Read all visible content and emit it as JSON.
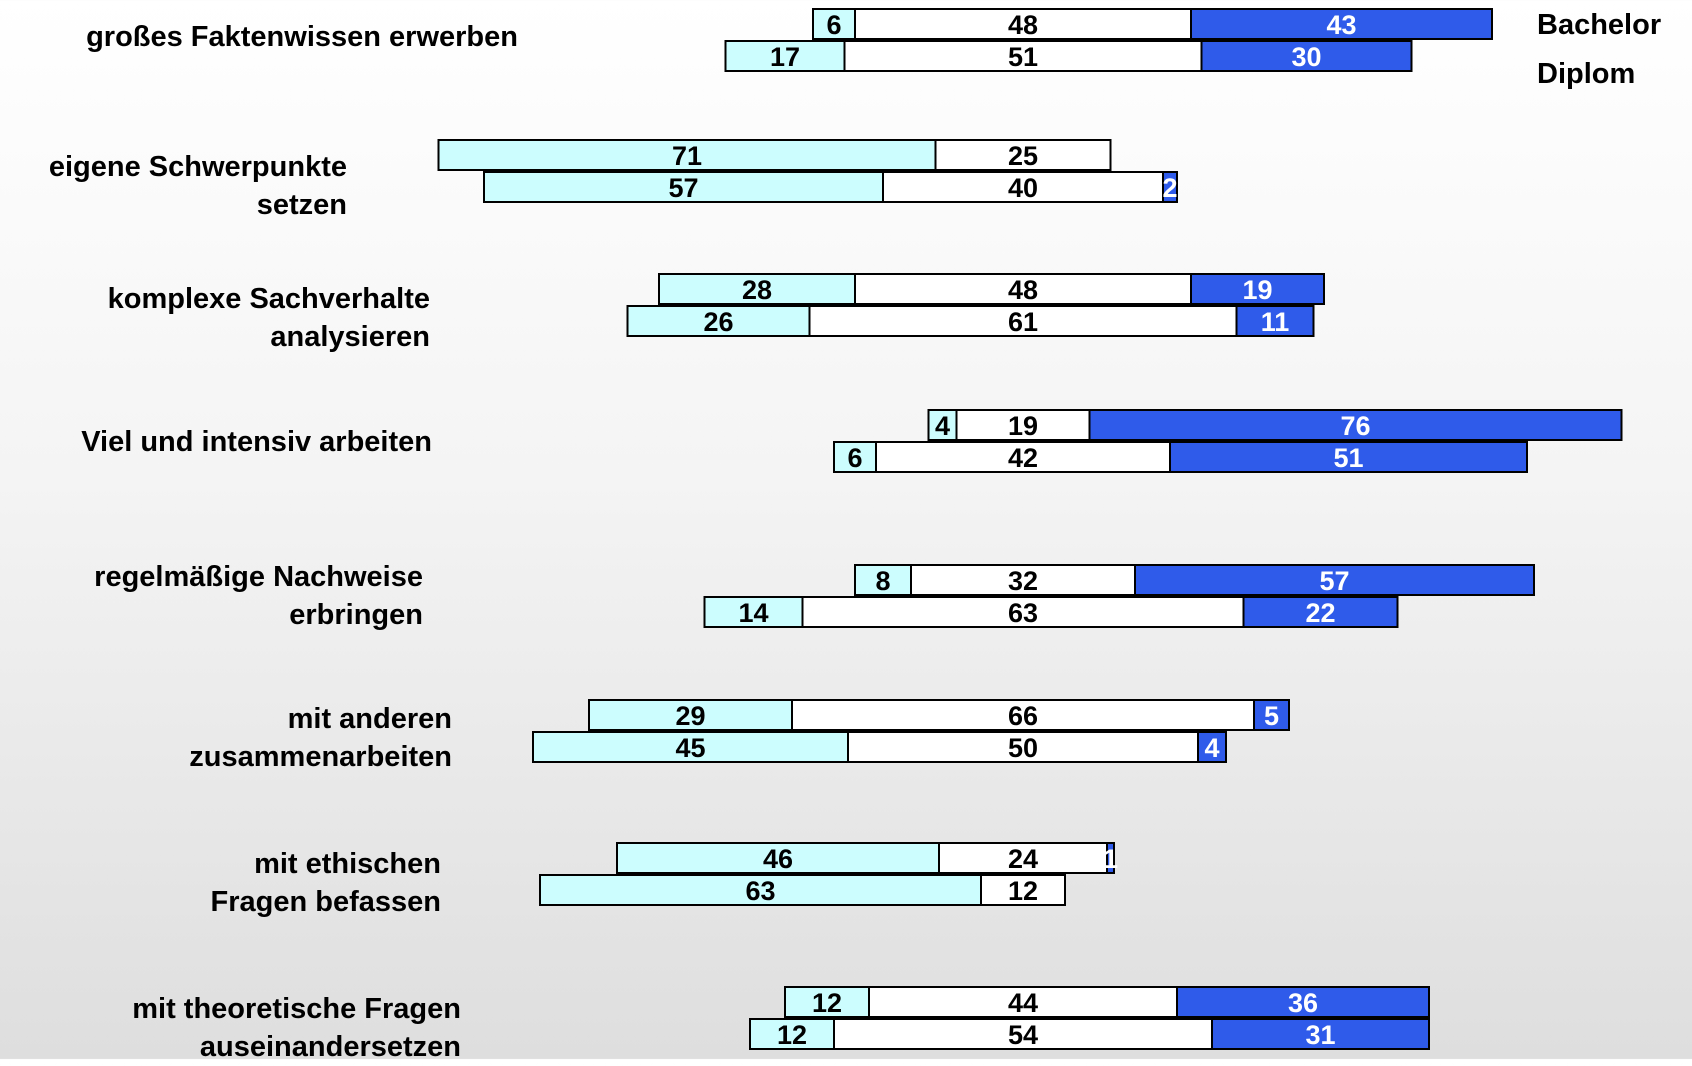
{
  "colors": {
    "low": "#ccfdfe",
    "mid": "#ffffff",
    "high": "#2f5bea",
    "stroke": "#000000",
    "label_dark": "#000000",
    "label_light": "#ffffff"
  },
  "legend": {
    "bachelor": "Bachelor",
    "diplom": "Diplom"
  },
  "chart_data": {
    "type": "bar",
    "subtype": "stacked-horizontal-diverging",
    "title": "",
    "xlabel": "",
    "ylabel": "",
    "grid": false,
    "legend_position": "top-right",
    "segments": [
      "low",
      "mid",
      "high"
    ],
    "series": [
      {
        "name": "Bachelor"
      },
      {
        "name": "Diplom"
      }
    ],
    "categories": [
      {
        "label_lines": [
          "großes Faktenwissen erwerben"
        ],
        "bachelor": [
          6,
          48,
          43
        ],
        "diplom": [
          17,
          51,
          30
        ]
      },
      {
        "label_lines": [
          "eigene Schwerpunkte",
          "setzen"
        ],
        "bachelor": [
          71,
          25,
          0
        ],
        "diplom": [
          57,
          40,
          2
        ]
      },
      {
        "label_lines": [
          "komplexe Sachverhalte",
          "analysieren"
        ],
        "bachelor": [
          28,
          48,
          19
        ],
        "diplom": [
          26,
          61,
          11
        ]
      },
      {
        "label_lines": [
          "Viel und intensiv arbeiten"
        ],
        "bachelor": [
          4,
          19,
          76
        ],
        "diplom": [
          6,
          42,
          51
        ]
      },
      {
        "label_lines": [
          "regelmäßige Nachweise",
          "erbringen"
        ],
        "bachelor": [
          8,
          32,
          57
        ],
        "diplom": [
          14,
          63,
          22
        ]
      },
      {
        "label_lines": [
          "mit anderen",
          "zusammenarbeiten"
        ],
        "bachelor": [
          29,
          66,
          5
        ],
        "diplom": [
          45,
          50,
          4
        ]
      },
      {
        "label_lines": [
          "mit ethischen",
          "Fragen befassen"
        ],
        "bachelor": [
          46,
          24,
          1
        ],
        "diplom": [
          63,
          12,
          0
        ]
      },
      {
        "label_lines": [
          "mit theoretische Fragen",
          "auseinandersetzen"
        ],
        "bachelor": [
          12,
          44,
          36
        ],
        "diplom": [
          12,
          54,
          31
        ]
      }
    ]
  }
}
